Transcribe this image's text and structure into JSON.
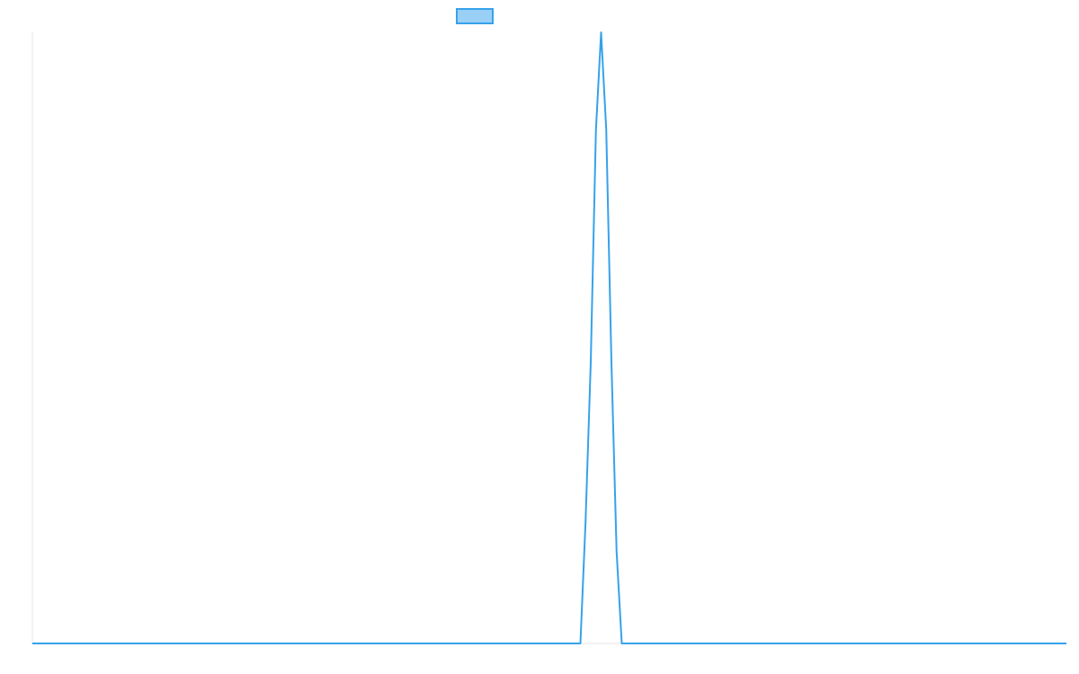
{
  "chart_data": {
    "type": "line",
    "x": [
      0,
      53,
      53.5,
      54,
      54.5,
      55,
      55.5,
      56,
      56.5,
      57,
      100
    ],
    "series": [
      {
        "color": "#36a2eb",
        "values": [
          0,
          0,
          0.2,
          0.46,
          0.84,
          1,
          0.84,
          0.46,
          0.15,
          0,
          0
        ]
      }
    ],
    "xlim": [
      0,
      100
    ],
    "ylim": [
      0,
      1
    ],
    "legend": "top"
  }
}
